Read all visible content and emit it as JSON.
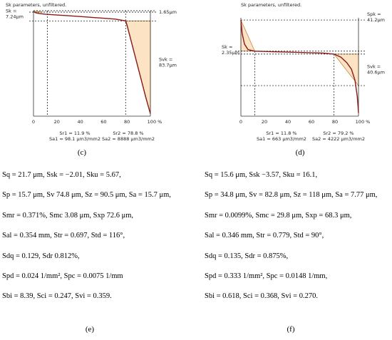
{
  "chart_data": [
    {
      "type": "line",
      "panel": "c",
      "title": "Sk parameters, unfiltered.",
      "xlim": [
        0,
        100
      ],
      "x_ticks": [
        "0",
        "20",
        "40",
        "60",
        "80",
        "100 %"
      ],
      "x": [
        0,
        2,
        5,
        10,
        20,
        30,
        40,
        50,
        60,
        70,
        78.8,
        80,
        84,
        88,
        92,
        96,
        100
      ],
      "y": [
        1.2,
        0.3,
        -0.3,
        -0.9,
        -1.6,
        -2.2,
        -2.9,
        -3.6,
        -4.3,
        -5.0,
        -6.5,
        -10,
        -25,
        -40,
        -55,
        -70,
        -84
      ],
      "labels": {
        "sk": "Sk =\n7.24μm",
        "spk": "1.65μm",
        "svk": "Svk =\n83.7μm",
        "sr1": "Sr1 = 11.9 %",
        "sa1": "Sa1 = 98.1 μm3/mm2",
        "sr2": "Sr2 = 78.8 %",
        "sa2": "Sa2 = 8888 μm3/mm2"
      },
      "caption": "(c)"
    },
    {
      "type": "line",
      "panel": "d",
      "title": "Sk parameters, unfiltered.",
      "xlim": [
        0,
        100
      ],
      "x_ticks": [
        "0",
        "20",
        "40",
        "60",
        "80",
        "100 %"
      ],
      "x": [
        0,
        1,
        3,
        6,
        11.8,
        20,
        30,
        40,
        50,
        60,
        70,
        79.2,
        85,
        90,
        94,
        97,
        99,
        100
      ],
      "y": [
        30,
        18,
        8,
        3,
        1.5,
        1.2,
        0.9,
        0.6,
        0.3,
        0,
        -0.3,
        -1.2,
        -4,
        -9,
        -15,
        -25,
        -40,
        -55
      ],
      "labels": {
        "spk": "Spk =\n41.2μm",
        "sk": "Sk =\n2.35μm",
        "svk": "Svk =\n40.6μm",
        "sr1": "Sr1 = 11.8 %",
        "sa1": "Sa1 = 663 μm3/mm2",
        "sr2": "Sr2 = 79.2 %",
        "sa2": "Sa2 = 4222 μm3/mm2"
      },
      "caption": "(d)"
    }
  ],
  "params_e": {
    "lines": [
      "Sq = 21.7 μm, Ssk = −2.01, Sku = 5.67,",
      "Sp = 15.7 μm, Sv 74.8 μm, Sz = 90.5 μm, Sa = 15.7 μm,",
      "Smr = 0.371%, Smc 3.08 μm, Sxp 72.6 μm,",
      "Sal = 0.354 mm, Str = 0.697, Std = 116°,",
      "Sdq = 0.129, Sdr 0.812%,",
      "Spd = 0.024 1/mm², Spc = 0.0075 1/mm",
      "Sbi = 8.39, Sci = 0.247, Svi = 0.359."
    ],
    "caption": "(e)"
  },
  "params_f": {
    "lines": [
      "Sq = 15.6 μm, Ssk −3.57, Sku = 16.1,",
      "Sp = 34.8 μm, Sv = 82.8 μm, Sz = 118 μm, Sa = 7.77 μm,",
      "Smr = 0.0099%, Smc = 29.8 μm, Sxp = 68.3 μm,",
      "Sal = 0.346 mm, Str = 0.779, Std = 90°,",
      "Sdq = 0.135, Sdr = 0.875%,",
      "Spd = 0.333 1/mm², Spc = 0.0148 1/mm,",
      "Sbi = 0.618, Sci = 0.368, Svi = 0.270."
    ],
    "caption": "(f)"
  },
  "colors": {
    "curve": "#8b1a1a",
    "fill": "#fbe3c4",
    "fill_stroke": "#c8874a",
    "axis": "#333333"
  }
}
